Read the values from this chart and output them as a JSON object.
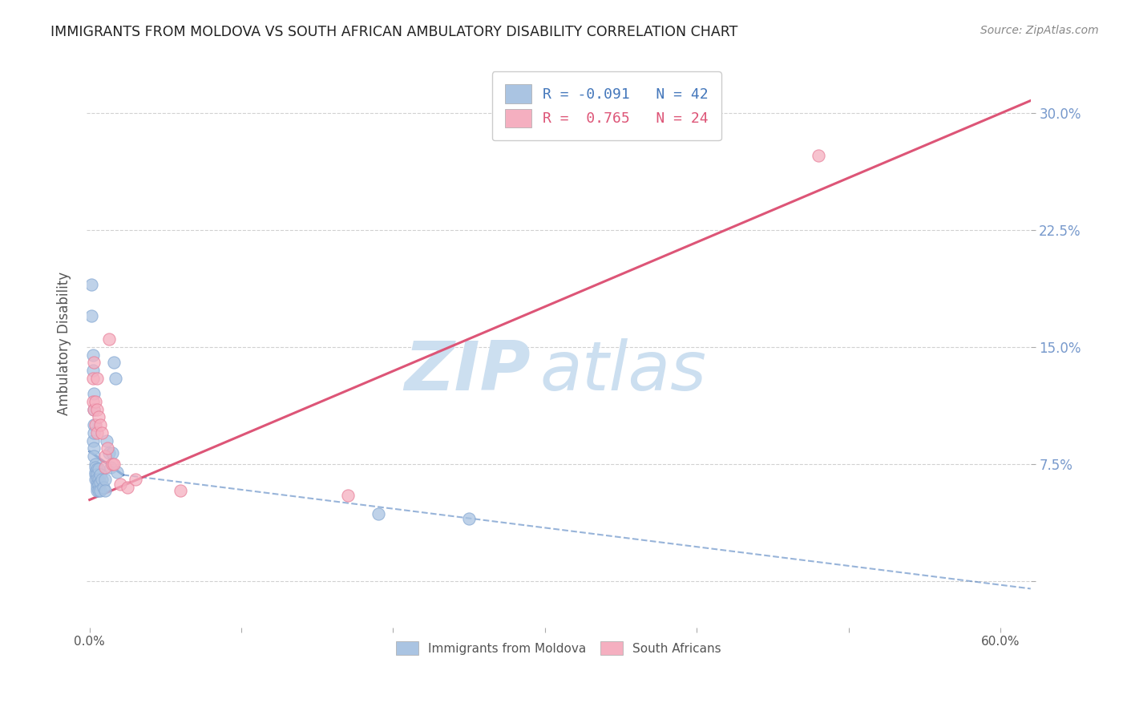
{
  "title": "IMMIGRANTS FROM MOLDOVA VS SOUTH AFRICAN AMBULATORY DISABILITY CORRELATION CHART",
  "source": "Source: ZipAtlas.com",
  "ylabel": "Ambulatory Disability",
  "legend_label1": "Immigrants from Moldova",
  "legend_label2": "South Africans",
  "R1": "-0.091",
  "N1": "42",
  "R2": "0.765",
  "N2": "24",
  "color1": "#aac4e2",
  "color2": "#f5afc0",
  "color1_edge": "#88aad4",
  "color2_edge": "#e8809a",
  "trendline1_color": "#4477bb",
  "trendline2_color": "#dd5577",
  "watermark_zip": "ZIP",
  "watermark_atlas": "atlas",
  "watermark_color": "#ccdff0",
  "xlim": [
    -0.002,
    0.62
  ],
  "ylim": [
    -0.03,
    0.335
  ],
  "x_tick_positions": [
    0.0,
    0.1,
    0.2,
    0.3,
    0.4,
    0.5,
    0.6
  ],
  "y_ticks": [
    0.0,
    0.075,
    0.15,
    0.225,
    0.3
  ],
  "y_tick_labels": [
    "",
    "7.5%",
    "15.0%",
    "22.5%",
    "30.0%"
  ],
  "grid_color": "#cccccc",
  "background_color": "#ffffff",
  "tick_color_right": "#7799cc",
  "moldova_x": [
    0.001,
    0.001,
    0.002,
    0.002,
    0.002,
    0.003,
    0.003,
    0.003,
    0.003,
    0.003,
    0.003,
    0.004,
    0.004,
    0.004,
    0.004,
    0.004,
    0.005,
    0.005,
    0.005,
    0.005,
    0.005,
    0.005,
    0.006,
    0.006,
    0.006,
    0.006,
    0.007,
    0.007,
    0.007,
    0.008,
    0.009,
    0.01,
    0.01,
    0.011,
    0.013,
    0.014,
    0.015,
    0.016,
    0.017,
    0.018,
    0.19,
    0.25
  ],
  "moldova_y": [
    0.19,
    0.17,
    0.145,
    0.135,
    0.09,
    0.12,
    0.11,
    0.1,
    0.095,
    0.085,
    0.08,
    0.075,
    0.073,
    0.07,
    0.068,
    0.065,
    0.072,
    0.068,
    0.065,
    0.062,
    0.06,
    0.058,
    0.072,
    0.065,
    0.062,
    0.058,
    0.068,
    0.063,
    0.058,
    0.065,
    0.06,
    0.065,
    0.058,
    0.09,
    0.082,
    0.073,
    0.082,
    0.14,
    0.13,
    0.07,
    0.043,
    0.04
  ],
  "sa_x": [
    0.002,
    0.002,
    0.003,
    0.003,
    0.004,
    0.004,
    0.005,
    0.005,
    0.005,
    0.006,
    0.007,
    0.008,
    0.01,
    0.01,
    0.012,
    0.013,
    0.015,
    0.016,
    0.02,
    0.025,
    0.03,
    0.06,
    0.17,
    0.48
  ],
  "sa_y": [
    0.13,
    0.115,
    0.14,
    0.11,
    0.115,
    0.1,
    0.13,
    0.11,
    0.095,
    0.105,
    0.1,
    0.095,
    0.08,
    0.073,
    0.085,
    0.155,
    0.075,
    0.075,
    0.062,
    0.06,
    0.065,
    0.058,
    0.055,
    0.273
  ],
  "trendline1_x_start": 0.0,
  "trendline1_x_solid_end": 0.022,
  "trendline1_x_end": 0.62,
  "trendline1_y_start": 0.083,
  "trendline1_y_solid_end": 0.068,
  "trendline1_y_end": -0.005,
  "trendline2_x_start": 0.0,
  "trendline2_x_end": 0.62,
  "trendline2_y_start": 0.052,
  "trendline2_y_end": 0.308
}
